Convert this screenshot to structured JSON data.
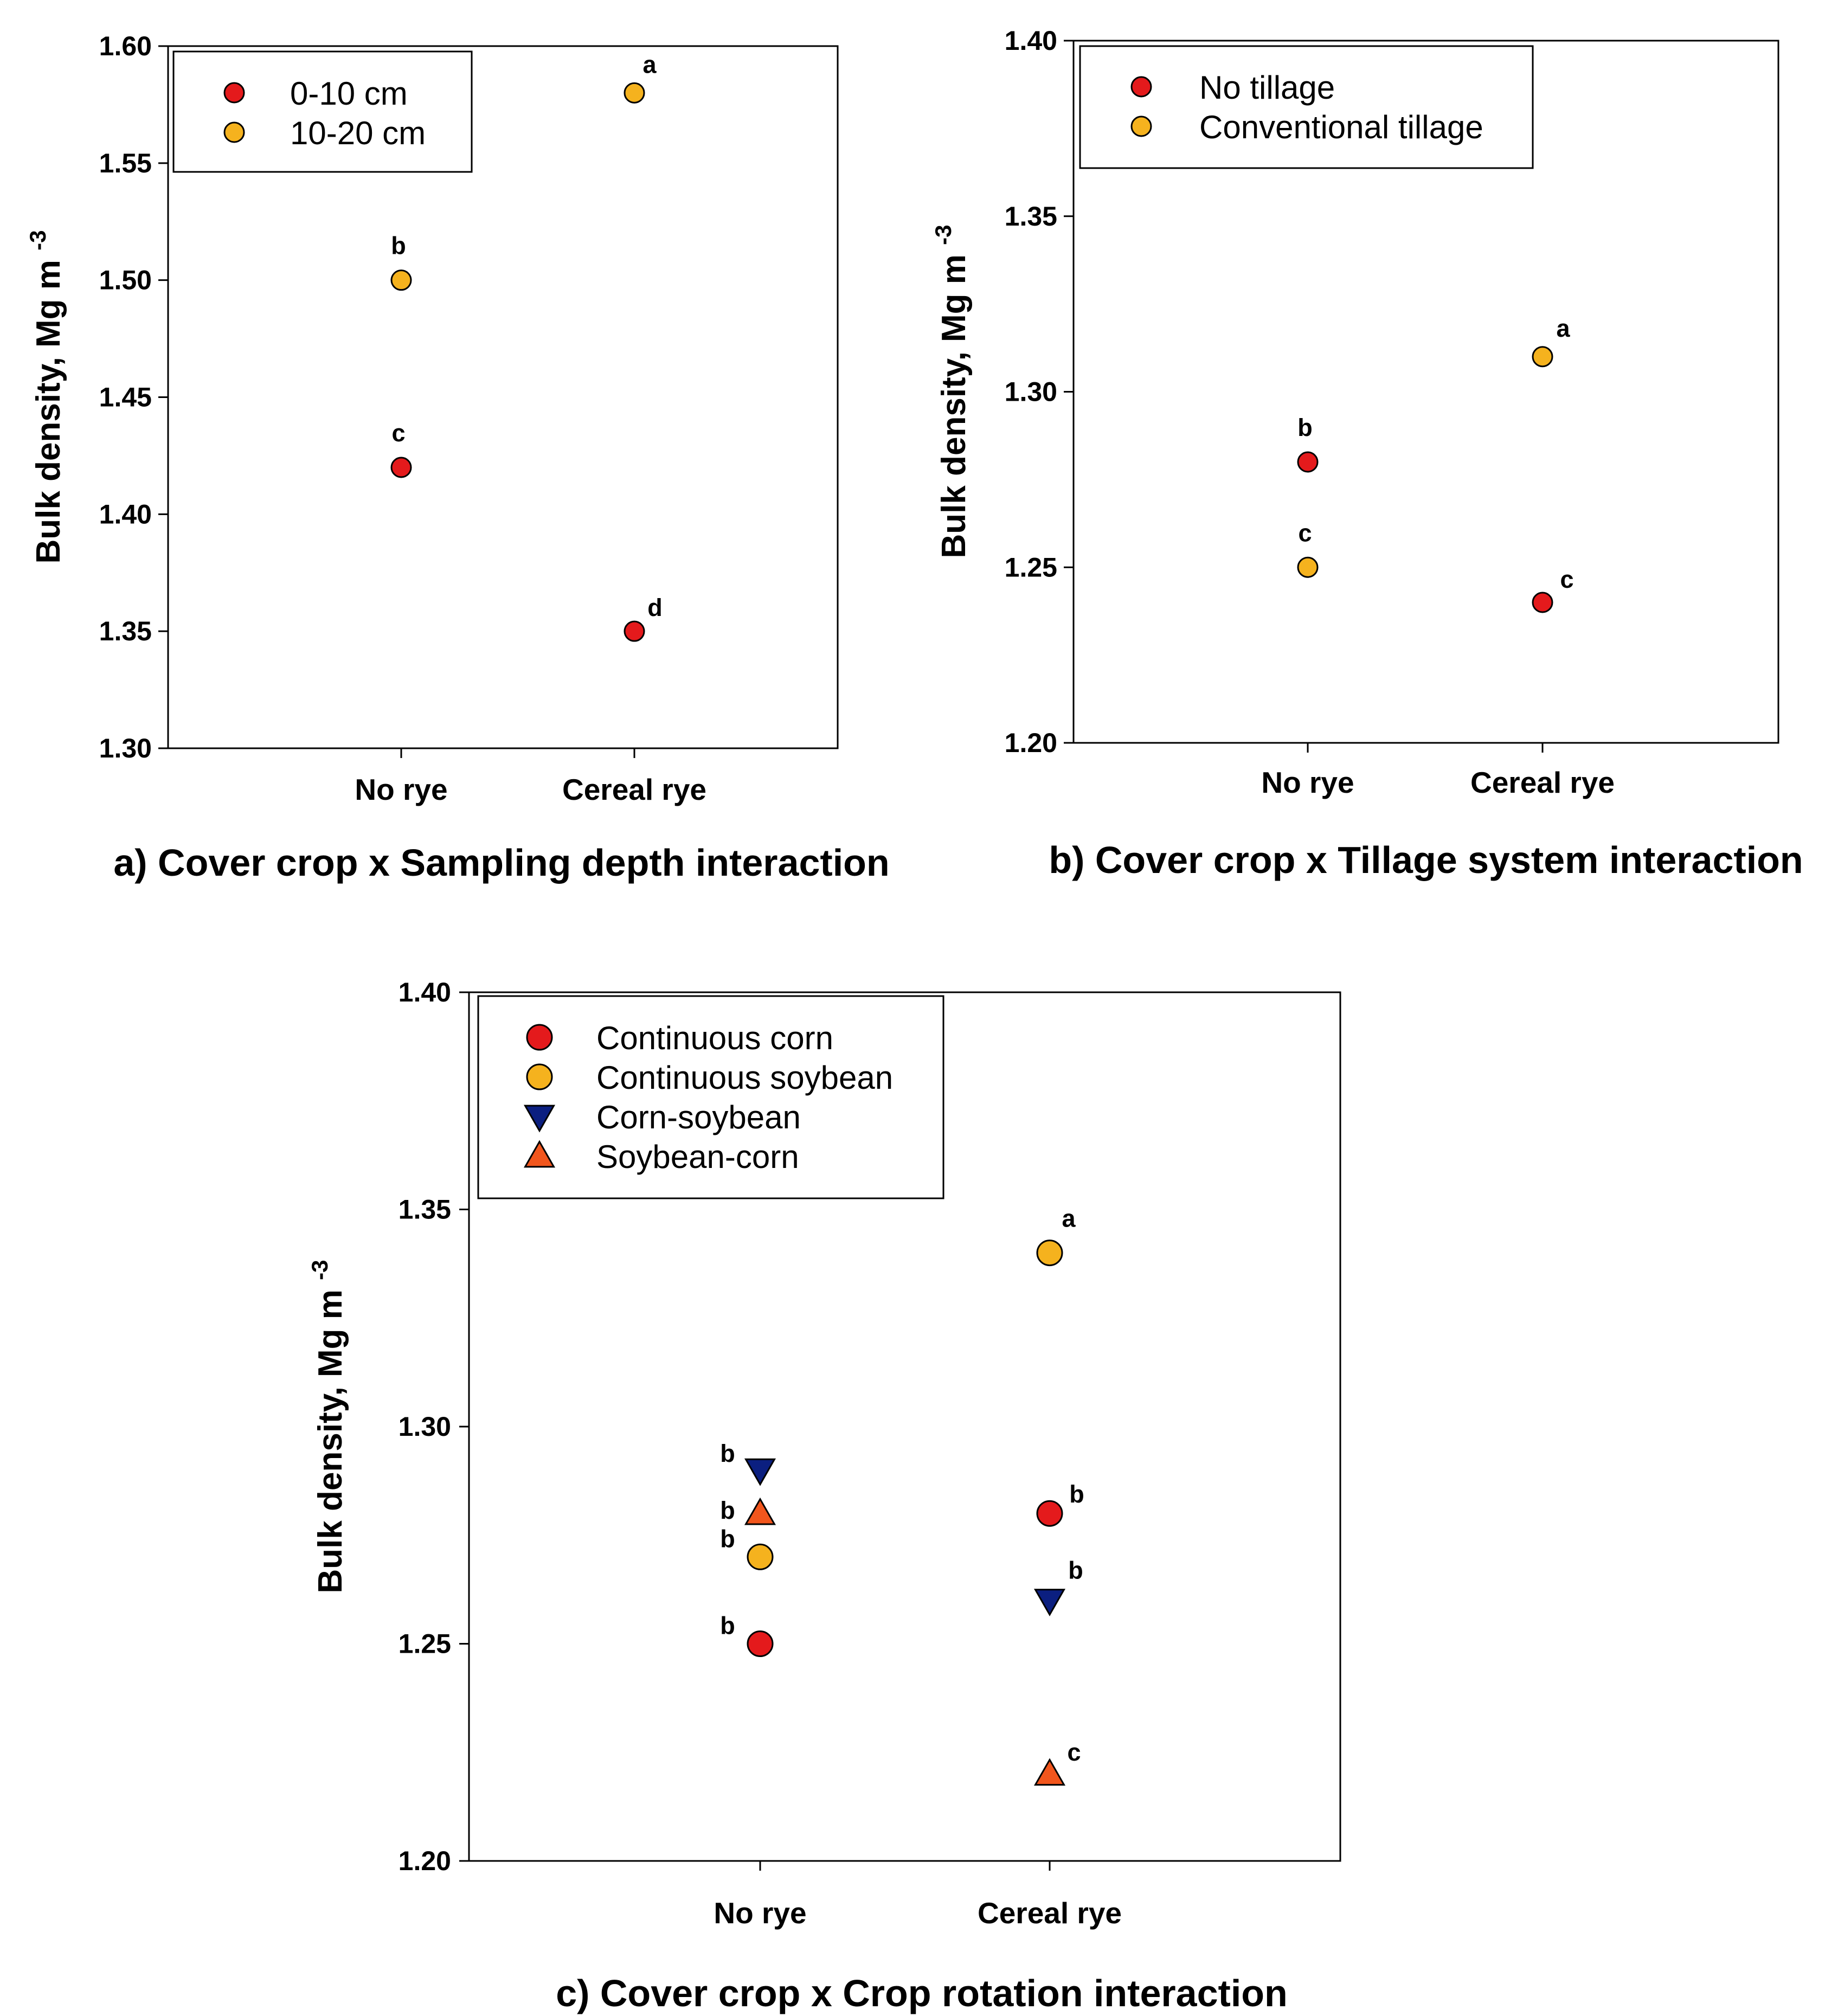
{
  "chart_data": [
    {
      "type": "scatter",
      "title": "",
      "caption": "a) Cover crop x Sampling depth interaction",
      "xlabel": "",
      "ylabel": "Bulk density, Mg m",
      "ylabel_sup": "-3",
      "categories": [
        "No rye",
        "Cereal rye"
      ],
      "ylim": [
        1.3,
        1.6
      ],
      "yticks": [
        "1.30",
        "1.35",
        "1.40",
        "1.45",
        "1.50",
        "1.55",
        "1.60"
      ],
      "legend_position": "top-left",
      "series": [
        {
          "name": "0-10 cm",
          "marker": "circle",
          "color": "#e41a1c",
          "values": [
            1.42,
            1.35
          ],
          "labels": [
            "c",
            "d"
          ]
        },
        {
          "name": "10-20 cm",
          "marker": "circle",
          "color": "#f5b21e",
          "values": [
            1.5,
            1.58
          ],
          "labels": [
            "b",
            "a"
          ]
        }
      ]
    },
    {
      "type": "scatter",
      "title": "",
      "caption": "b) Cover crop x Tillage system interaction",
      "xlabel": "",
      "ylabel": "Bulk density, Mg m",
      "ylabel_sup": "-3",
      "categories": [
        "No rye",
        "Cereal rye"
      ],
      "ylim": [
        1.2,
        1.4
      ],
      "yticks": [
        "1.20",
        "1.25",
        "1.30",
        "1.35",
        "1.40"
      ],
      "legend_position": "top-left",
      "series": [
        {
          "name": "No tillage",
          "marker": "circle",
          "color": "#e41a1c",
          "values": [
            1.28,
            1.24
          ],
          "labels": [
            "b",
            "c"
          ]
        },
        {
          "name": "Conventional tillage",
          "marker": "circle",
          "color": "#f5b21e",
          "values": [
            1.25,
            1.31
          ],
          "labels": [
            "c",
            "a"
          ]
        }
      ]
    },
    {
      "type": "scatter",
      "title": "",
      "caption": "c) Cover crop x Crop rotation interaction",
      "xlabel": "",
      "ylabel": "Bulk density, Mg m",
      "ylabel_sup": "-3",
      "categories": [
        "No rye",
        "Cereal rye"
      ],
      "ylim": [
        1.2,
        1.4
      ],
      "yticks": [
        "1.20",
        "1.25",
        "1.30",
        "1.35",
        "1.40"
      ],
      "legend_position": "top-left",
      "series": [
        {
          "name": "Continuous corn",
          "marker": "circle",
          "color": "#e41a1c",
          "values": [
            1.25,
            1.28
          ],
          "labels": [
            "b",
            "b"
          ]
        },
        {
          "name": "Continuous soybean",
          "marker": "circle",
          "color": "#f5b21e",
          "values": [
            1.27,
            1.34
          ],
          "labels": [
            "b",
            "a"
          ]
        },
        {
          "name": "Corn-soybean",
          "marker": "triangle-down",
          "color": "#0b1f80",
          "values": [
            1.29,
            1.26
          ],
          "labels": [
            "b",
            "b"
          ]
        },
        {
          "name": "Soybean-corn",
          "marker": "triangle-up",
          "color": "#f2561d",
          "values": [
            1.28,
            1.22
          ],
          "labels": [
            "b",
            "c"
          ]
        }
      ]
    }
  ]
}
